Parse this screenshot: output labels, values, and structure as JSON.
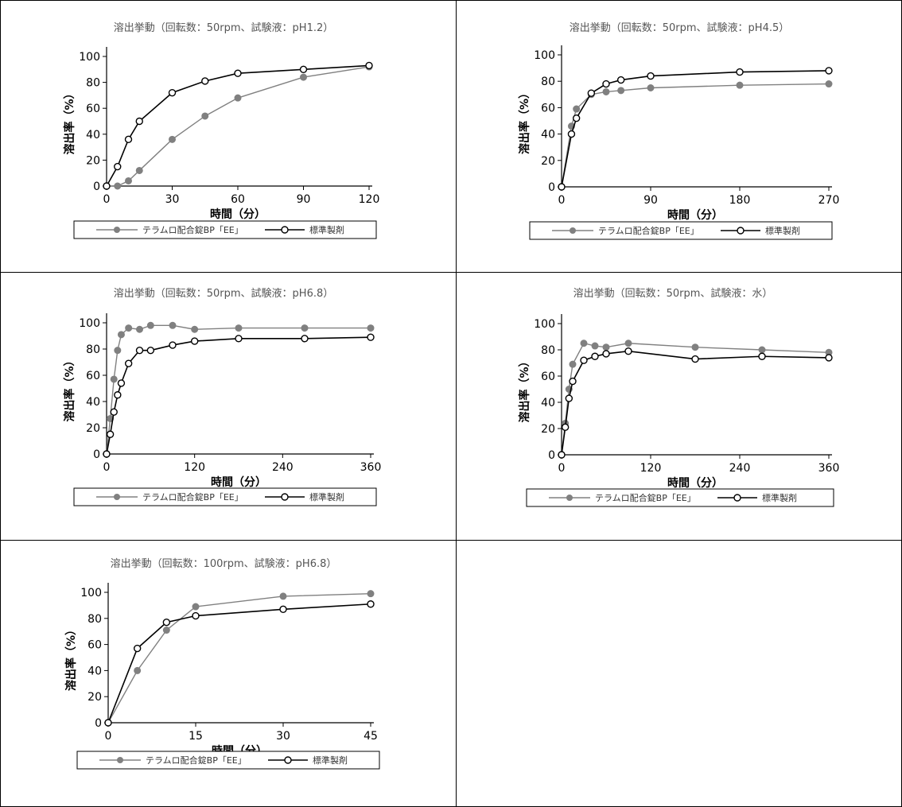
{
  "legend": {
    "test_label": "テラムロ配合錠BP「EE」",
    "ref_label": "標準製剤"
  },
  "colors": {
    "test": "#808080",
    "ref": "#000000"
  },
  "chart_data": [
    {
      "type": "line",
      "title": "溶出挙動（回転数：50rpm、試験液：pH1.2）",
      "xlabel": "時間（分）",
      "ylabel": "溶出率（%）",
      "xlim": [
        0,
        120
      ],
      "ylim": [
        0,
        100
      ],
      "xticks": [
        0,
        30,
        60,
        90,
        120
      ],
      "yticks": [
        0,
        20,
        40,
        60,
        80,
        100
      ],
      "series": [
        {
          "name": "テラムロ配合錠BP「EE」",
          "x": [
            0,
            5,
            10,
            15,
            30,
            45,
            60,
            90,
            120
          ],
          "y": [
            0,
            0,
            4,
            12,
            36,
            54,
            68,
            84,
            92
          ]
        },
        {
          "name": "標準製剤",
          "x": [
            0,
            5,
            10,
            15,
            30,
            45,
            60,
            90,
            120
          ],
          "y": [
            0,
            15,
            36,
            50,
            72,
            81,
            87,
            90,
            93
          ]
        }
      ]
    },
    {
      "type": "line",
      "title": "溶出挙動（回転数：50rpm、試験液：pH4.5）",
      "xlabel": "時間（分）",
      "ylabel": "溶出率（%）",
      "xlim": [
        0,
        270
      ],
      "ylim": [
        0,
        100
      ],
      "xticks": [
        0,
        90,
        180,
        270
      ],
      "yticks": [
        0,
        20,
        40,
        60,
        80,
        100
      ],
      "series": [
        {
          "name": "テラムロ配合錠BP「EE」",
          "x": [
            0,
            10,
            15,
            30,
            45,
            60,
            90,
            180,
            270
          ],
          "y": [
            0,
            46,
            59,
            70,
            72,
            73,
            75,
            77,
            78
          ]
        },
        {
          "name": "標準製剤",
          "x": [
            0,
            10,
            15,
            30,
            45,
            60,
            90,
            180,
            270
          ],
          "y": [
            0,
            40,
            52,
            71,
            78,
            81,
            84,
            87,
            88
          ]
        }
      ]
    },
    {
      "type": "line",
      "title": "溶出挙動（回転数：50rpm、試験液：pH6.8）",
      "xlabel": "時間（分）",
      "ylabel": "溶出率（%）",
      "xlim": [
        0,
        360
      ],
      "ylim": [
        0,
        100
      ],
      "xticks": [
        0,
        120,
        240,
        360
      ],
      "yticks": [
        0,
        20,
        40,
        60,
        80,
        100
      ],
      "series": [
        {
          "name": "テラムロ配合錠BP「EE」",
          "x": [
            0,
            5,
            10,
            15,
            20,
            30,
            45,
            60,
            90,
            120,
            180,
            270,
            360
          ],
          "y": [
            0,
            27,
            57,
            79,
            91,
            96,
            95,
            98,
            98,
            95,
            96,
            96,
            96
          ]
        },
        {
          "name": "標準製剤",
          "x": [
            0,
            5,
            10,
            15,
            20,
            30,
            45,
            60,
            90,
            120,
            180,
            270,
            360
          ],
          "y": [
            0,
            15,
            32,
            45,
            54,
            69,
            79,
            79,
            83,
            86,
            88,
            88,
            89
          ]
        }
      ]
    },
    {
      "type": "line",
      "title": "溶出挙動（回転数：50rpm、試験液：水）",
      "xlabel": "時間（分）",
      "ylabel": "溶出率（%）",
      "xlim": [
        0,
        360
      ],
      "ylim": [
        0,
        100
      ],
      "xticks": [
        0,
        120,
        240,
        360
      ],
      "yticks": [
        0,
        20,
        40,
        60,
        80,
        100
      ],
      "series": [
        {
          "name": "テラムロ配合錠BP「EE」",
          "x": [
            0,
            5,
            10,
            15,
            30,
            45,
            60,
            90,
            180,
            270,
            360
          ],
          "y": [
            0,
            24,
            50,
            69,
            85,
            83,
            82,
            85,
            82,
            80,
            78
          ]
        },
        {
          "name": "標準製剤",
          "x": [
            0,
            5,
            10,
            15,
            30,
            45,
            60,
            90,
            180,
            270,
            360
          ],
          "y": [
            0,
            21,
            43,
            56,
            72,
            75,
            77,
            79,
            73,
            75,
            74
          ]
        }
      ]
    },
    {
      "type": "line",
      "title": "溶出挙動（回転数：100rpm、試験液：pH6.8）",
      "xlabel": "時間（分）",
      "ylabel": "溶出率（%）",
      "xlim": [
        0,
        45
      ],
      "ylim": [
        0,
        100
      ],
      "xticks": [
        0,
        15,
        30,
        45
      ],
      "yticks": [
        0,
        20,
        40,
        60,
        80,
        100
      ],
      "series": [
        {
          "name": "テラムロ配合錠BP「EE」",
          "x": [
            0,
            5,
            10,
            15,
            30,
            45
          ],
          "y": [
            0,
            40,
            71,
            89,
            97,
            99
          ]
        },
        {
          "name": "標準製剤",
          "x": [
            0,
            5,
            10,
            15,
            30,
            45
          ],
          "y": [
            0,
            57,
            77,
            82,
            87,
            91
          ]
        }
      ]
    }
  ]
}
